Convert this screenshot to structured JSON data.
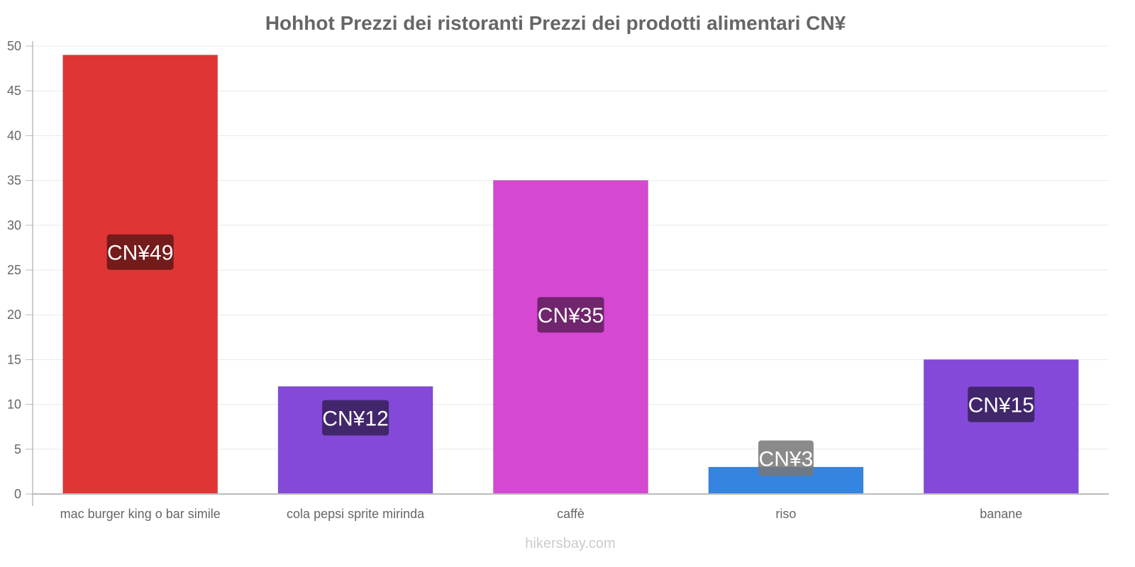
{
  "chart_data": {
    "type": "bar",
    "title": "Hohhot Prezzi dei ristoranti Prezzi dei prodotti alimentari CN¥",
    "categories": [
      "mac burger king o bar simile",
      "cola pepsi sprite mirinda",
      "caffè",
      "riso",
      "banane"
    ],
    "values": [
      49,
      12,
      35,
      3,
      15
    ],
    "data_labels": [
      "CN¥49",
      "CN¥12",
      "CN¥35",
      "CN¥3",
      "CN¥15"
    ],
    "colors": [
      "#e03535",
      "#8449d8",
      "#d548d2",
      "#3584e0",
      "#8449d8"
    ],
    "label_colors": [
      "#6e1a1a",
      "#3d2566",
      "#6a2466",
      "#777777",
      "#3d2566"
    ],
    "ylim": [
      0,
      50
    ],
    "yticks": [
      0,
      5,
      10,
      15,
      20,
      25,
      30,
      35,
      40,
      45,
      50
    ],
    "xlabel": "",
    "ylabel": "",
    "grid": true
  },
  "watermark": "hikersbay.com"
}
